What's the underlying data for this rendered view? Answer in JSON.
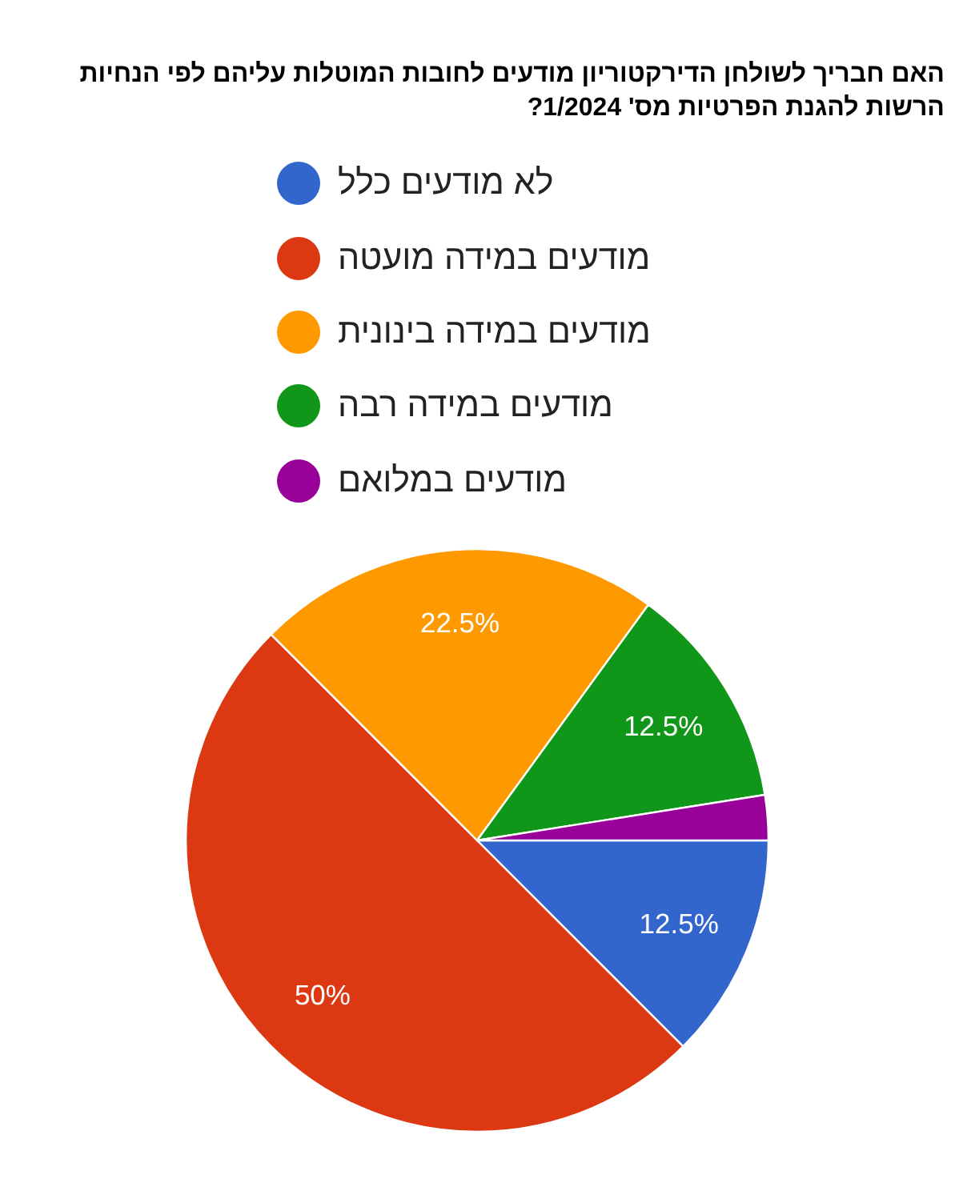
{
  "chart_data": {
    "type": "pie",
    "title": "האם חבריך לשולחן הדירקטוריון מודעים לחובות המוטלות עליהם לפי הנחיות הרשות להגנת הפרטיות מס' 1/2024?",
    "categories": [
      "לא מודעים כלל",
      "מודעים במידה מועטה",
      "מודעים במידה בינונית",
      "מודעים במידה רבה",
      "מודעים במלואם"
    ],
    "values": [
      12.5,
      50,
      22.5,
      12.5,
      2.5
    ],
    "colors": [
      "#3366cc",
      "#dc3912",
      "#ff9900",
      "#109618",
      "#990099"
    ],
    "value_labels": [
      "12.5%",
      "50%",
      "22.5%",
      "12.5%",
      null
    ],
    "legend": "top"
  }
}
